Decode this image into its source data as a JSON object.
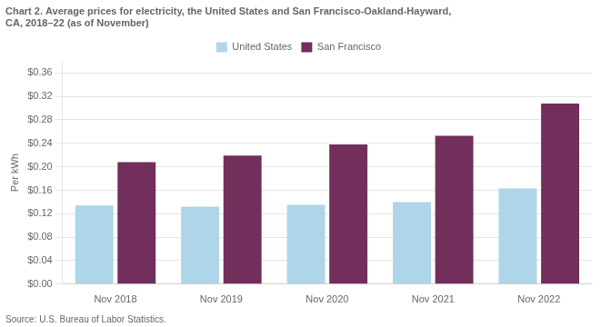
{
  "chart_data": {
    "type": "bar",
    "title": [
      "Chart 2. Average prices for electricity, the United States and San Francisco-Oakland-Hayward,",
      "CA, 2018–22 (as of November)"
    ],
    "ylabel": "Per kWh",
    "annotations": [
      "Source: U.S. Bureau of Labor Statistics."
    ],
    "categories": [
      "Nov 2018",
      "Nov 2019",
      "Nov 2020",
      "Nov 2021",
      "Nov 2022"
    ],
    "series": [
      {
        "name": "United States",
        "color": "#aed6e8",
        "values": [
          0.134,
          0.132,
          0.135,
          0.14,
          0.163
        ]
      },
      {
        "name": "San Francisco",
        "color": "#722F5B",
        "values": [
          0.208,
          0.219,
          0.238,
          0.253,
          0.308
        ]
      }
    ],
    "ylim": [
      0,
      0.38
    ],
    "yticks": [
      {
        "value": 0.0,
        "label": "$0.00"
      },
      {
        "value": 0.04,
        "label": "$0.04"
      },
      {
        "value": 0.08,
        "label": "$0.08"
      },
      {
        "value": 0.12,
        "label": "$0.12"
      },
      {
        "value": 0.16,
        "label": "$0.16"
      },
      {
        "value": 0.2,
        "label": "$0.20"
      },
      {
        "value": 0.24,
        "label": "$0.24"
      },
      {
        "value": 0.28,
        "label": "$0.28"
      },
      {
        "value": 0.32,
        "label": "$0.32"
      },
      {
        "value": 0.36,
        "label": "$0.36"
      }
    ],
    "grid": true,
    "legend": "top"
  }
}
